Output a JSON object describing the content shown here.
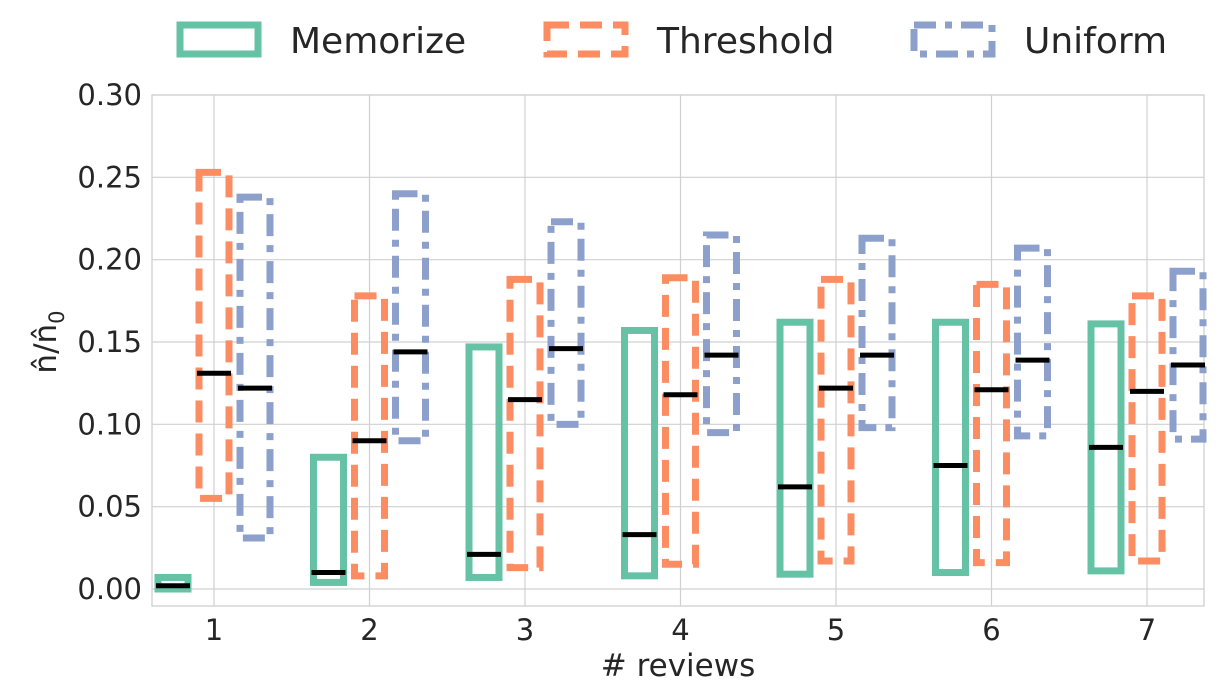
{
  "chart_data": {
    "type": "box",
    "xlabel": "# reviews",
    "ylabel": "n̂/n̂₀",
    "ylabel_parts": {
      "base": "n̂/n̂",
      "sub": "0"
    },
    "ylim": [
      0.0,
      0.3
    ],
    "yticks": [
      "0.00",
      "0.05",
      "0.10",
      "0.15",
      "0.20",
      "0.25",
      "0.30"
    ],
    "ytick_values": [
      0.0,
      0.05,
      0.1,
      0.15,
      0.2,
      0.25,
      0.3
    ],
    "categories": [
      "1",
      "2",
      "3",
      "4",
      "5",
      "6",
      "7"
    ],
    "grid": true,
    "legend_position": "top",
    "series": [
      {
        "name": "Memorize",
        "color": "#66c2a5",
        "dash": "solid",
        "low": [
          0.0,
          0.004,
          0.007,
          0.008,
          0.009,
          0.01,
          0.011
        ],
        "high": [
          0.007,
          0.08,
          0.147,
          0.157,
          0.162,
          0.162,
          0.161
        ],
        "median": [
          0.002,
          0.01,
          0.021,
          0.033,
          0.062,
          0.075,
          0.086
        ]
      },
      {
        "name": "Threshold",
        "color": "#fc8d62",
        "dash": "dashed",
        "low": [
          0.055,
          0.008,
          0.013,
          0.015,
          0.017,
          0.016,
          0.017
        ],
        "high": [
          0.253,
          0.178,
          0.188,
          0.189,
          0.188,
          0.185,
          0.178
        ],
        "median": [
          0.131,
          0.09,
          0.115,
          0.118,
          0.122,
          0.121,
          0.12
        ]
      },
      {
        "name": "Uniform",
        "color": "#8da0cb",
        "dash": "dashdot",
        "low": [
          0.031,
          0.09,
          0.1,
          0.095,
          0.098,
          0.093,
          0.091
        ],
        "high": [
          0.238,
          0.24,
          0.223,
          0.215,
          0.213,
          0.207,
          0.193
        ],
        "median": [
          0.122,
          0.144,
          0.146,
          0.142,
          0.142,
          0.139,
          0.136
        ]
      }
    ]
  }
}
